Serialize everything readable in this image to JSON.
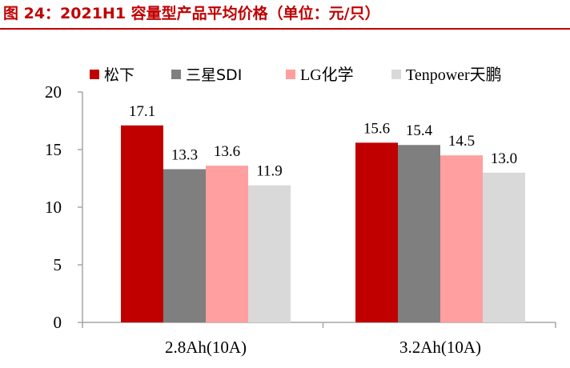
{
  "figure_title": "图 24：2021H1 容量型产品平均价格（单位：元/只）",
  "chart_data": {
    "type": "bar",
    "title": "",
    "xlabel": "",
    "ylabel": "",
    "categories": [
      "2.8Ah(10A)",
      "3.2Ah(10A)"
    ],
    "series": [
      {
        "name": "松下",
        "values": [
          17.1,
          15.6
        ],
        "color": "#c00000"
      },
      {
        "name": "三星SDI",
        "values": [
          13.3,
          15.4
        ],
        "color": "#7f7f7f"
      },
      {
        "name": "LG化学",
        "values": [
          13.6,
          14.5
        ],
        "color": "#ff9f9f"
      },
      {
        "name": "Tenpower天鹏",
        "values": [
          11.9,
          13.0
        ],
        "color": "#d9d9d9"
      }
    ],
    "ylim": [
      0,
      20
    ],
    "yticks": [
      0,
      5,
      10,
      15,
      20
    ],
    "grid": false,
    "legend": "top",
    "data_labels": true
  }
}
